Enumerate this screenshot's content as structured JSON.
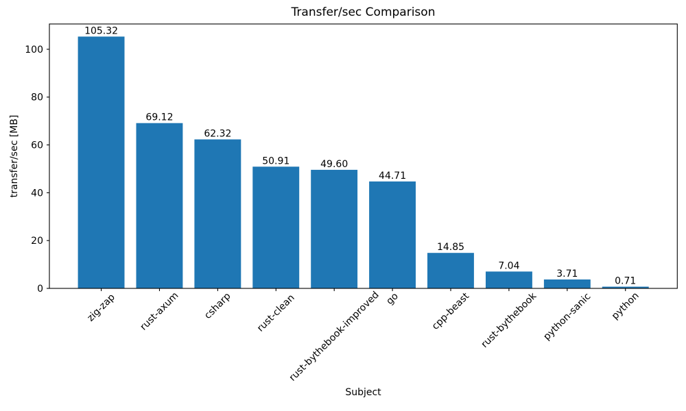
{
  "figure": {
    "title": "Transfer/sec Comparison",
    "xlabel": "Subject",
    "ylabel": "transfer/sec [MB]"
  },
  "chart_data": {
    "type": "bar",
    "title": "Transfer/sec Comparison",
    "xlabel": "Subject",
    "ylabel": "transfer/sec [MB]",
    "categories": [
      "zig-zap",
      "rust-axum",
      "csharp",
      "rust-clean",
      "rust-bythebook-improved",
      "go",
      "cpp-beast",
      "rust-bythebook",
      "python-sanic",
      "python"
    ],
    "values": [
      105.32,
      69.12,
      62.32,
      50.91,
      49.6,
      44.71,
      14.85,
      7.04,
      3.71,
      0.71
    ],
    "bar_labels": [
      "105.32",
      "69.12",
      "62.32",
      "50.91",
      "49.60",
      "44.71",
      "14.85",
      "7.04",
      "3.71",
      "0.71"
    ],
    "yticks": [
      0,
      20,
      40,
      60,
      80,
      100
    ],
    "ylim": [
      0,
      110.58
    ],
    "x_tick_rotation_deg": 45,
    "bar_color": "#1f77b4",
    "axis_color": "#000000",
    "background_color": "#ffffff",
    "grid": false,
    "legend": false
  }
}
